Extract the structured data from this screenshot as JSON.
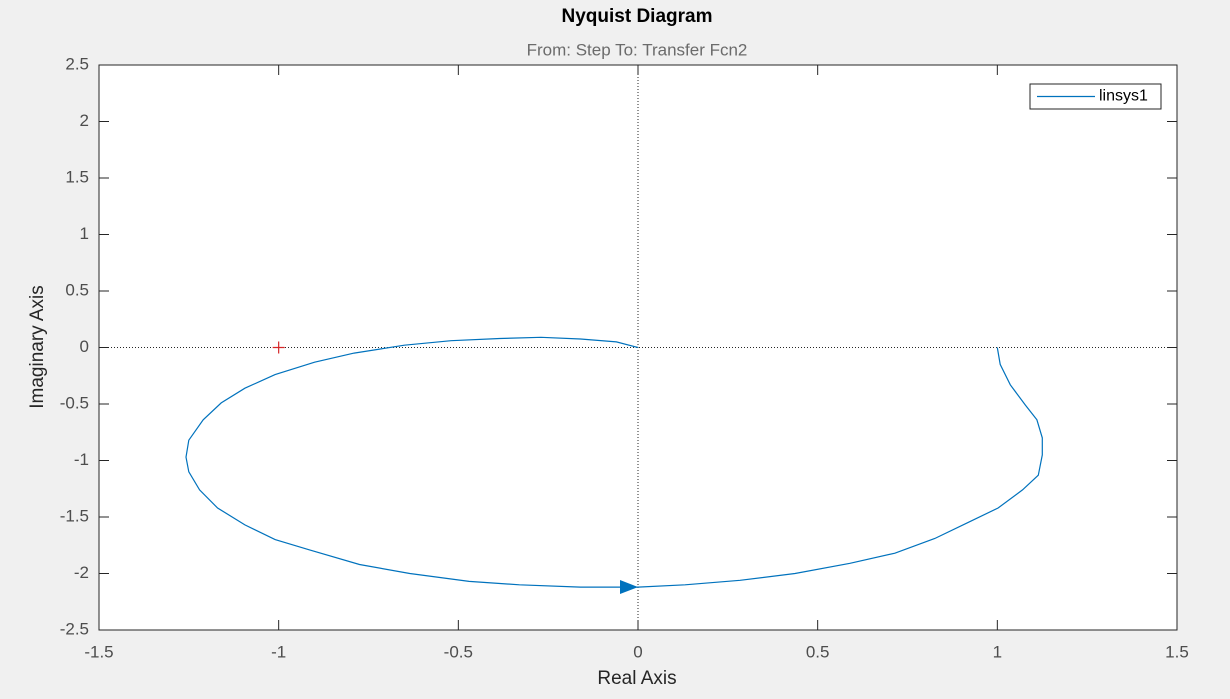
{
  "chart_data": {
    "type": "line",
    "title": "Nyquist Diagram",
    "subtitle": "From: Step  To: Transfer Fcn2",
    "x_label": "Real Axis",
    "y_label": "Imaginary Axis",
    "xlim": [
      -1.5,
      1.5
    ],
    "ylim": [
      -2.5,
      2.5
    ],
    "xticks": [
      -1.5,
      -1,
      -0.5,
      0,
      0.5,
      1,
      1.5
    ],
    "yticks": [
      -2.5,
      -2,
      -1.5,
      -1,
      -0.5,
      0,
      0.5,
      1,
      1.5,
      2,
      2.5
    ],
    "legend": "top-right",
    "critical_point": {
      "x": -1,
      "y": 0,
      "color": "#d62728"
    },
    "series": [
      {
        "name": "linsys1",
        "color": "#0072bd",
        "x": [
          1.0,
          1.008,
          1.036,
          1.078,
          1.11,
          1.125,
          1.125,
          1.114,
          1.07,
          1.002,
          0.918,
          0.826,
          0.715,
          0.59,
          0.437,
          0.284,
          0.131,
          0.0,
          -0.16,
          -0.33,
          -0.47,
          -0.635,
          -0.775,
          -0.915,
          -1.01,
          -1.094,
          -1.17,
          -1.22,
          -1.25,
          -1.258,
          -1.25,
          -1.21,
          -1.16,
          -1.094,
          -1.01,
          -0.9,
          -0.79,
          -0.65,
          -0.52,
          -0.385,
          -0.27,
          -0.16,
          -0.06,
          0.0
        ],
        "values": [
          0.0,
          -0.15,
          -0.33,
          -0.51,
          -0.64,
          -0.8,
          -0.95,
          -1.13,
          -1.26,
          -1.42,
          -1.55,
          -1.69,
          -1.82,
          -1.91,
          -2.0,
          -2.06,
          -2.1,
          -2.12,
          -2.12,
          -2.1,
          -2.07,
          -2.0,
          -1.92,
          -1.79,
          -1.7,
          -1.57,
          -1.42,
          -1.26,
          -1.1,
          -0.97,
          -0.82,
          -0.64,
          -0.49,
          -0.36,
          -0.24,
          -0.13,
          -0.05,
          0.02,
          0.06,
          0.08,
          0.09,
          0.075,
          0.05,
          0.0
        ]
      }
    ]
  }
}
